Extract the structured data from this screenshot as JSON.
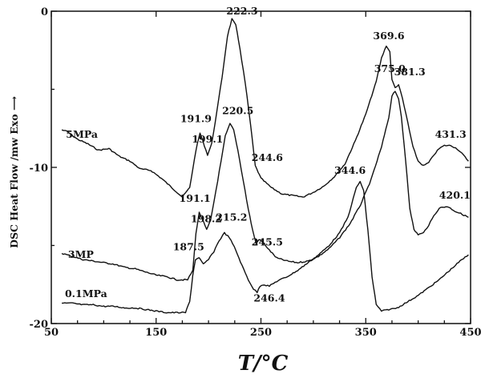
{
  "chart_data": {
    "type": "line",
    "xlabel": "T/°C",
    "ylabel": "DSC Heat Flow /mw   Exo ⟶",
    "xlim": [
      50,
      450
    ],
    "ylim": [
      -20,
      0
    ],
    "xticks": [
      50,
      150,
      250,
      350,
      450
    ],
    "xtick_labels": [
      "50",
      "150",
      "250",
      "350",
      "450"
    ],
    "yticks": [
      0,
      -10,
      -20
    ],
    "ytick_labels": [
      "0",
      "-10",
      "-20"
    ],
    "grid": false,
    "series": [
      {
        "name": "5MPa",
        "points": [
          [
            60,
            -7.6
          ],
          [
            65,
            -7.7
          ],
          [
            75,
            -8.2
          ],
          [
            85,
            -8.5
          ],
          [
            95,
            -8.9
          ],
          [
            105,
            -8.8
          ],
          [
            115,
            -9.3
          ],
          [
            125,
            -9.6
          ],
          [
            135,
            -10.1
          ],
          [
            145,
            -10.2
          ],
          [
            155,
            -10.7
          ],
          [
            165,
            -11.3
          ],
          [
            175,
            -11.9
          ],
          [
            182,
            -11.3
          ],
          [
            188,
            -8.9
          ],
          [
            191.9,
            -7.8
          ],
          [
            196,
            -8.6
          ],
          [
            199.1,
            -9.2
          ],
          [
            203,
            -8.5
          ],
          [
            208,
            -6.4
          ],
          [
            213,
            -4.2
          ],
          [
            218,
            -1.6
          ],
          [
            222.3,
            -0.5
          ],
          [
            226,
            -0.9
          ],
          [
            230,
            -2.4
          ],
          [
            235,
            -4.6
          ],
          [
            240,
            -7.2
          ],
          [
            244.6,
            -9.9
          ],
          [
            250,
            -10.7
          ],
          [
            260,
            -11.3
          ],
          [
            270,
            -11.7
          ],
          [
            280,
            -11.8
          ],
          [
            290,
            -11.9
          ],
          [
            300,
            -11.6
          ],
          [
            310,
            -11.2
          ],
          [
            320,
            -10.6
          ],
          [
            330,
            -9.8
          ],
          [
            340,
            -8.3
          ],
          [
            350,
            -6.6
          ],
          [
            360,
            -4.5
          ],
          [
            365,
            -3.0
          ],
          [
            369.6,
            -2.2
          ],
          [
            373,
            -2.6
          ],
          [
            375.0,
            -4.4
          ],
          [
            378,
            -4.9
          ],
          [
            381.3,
            -4.7
          ],
          [
            385,
            -5.6
          ],
          [
            390,
            -7.1
          ],
          [
            395,
            -8.7
          ],
          [
            400,
            -9.6
          ],
          [
            405,
            -9.9
          ],
          [
            410,
            -9.7
          ],
          [
            415,
            -9.2
          ],
          [
            420,
            -8.8
          ],
          [
            425,
            -8.6
          ],
          [
            431.3,
            -8.6
          ],
          [
            437,
            -8.8
          ],
          [
            443,
            -9.2
          ],
          [
            448,
            -9.6
          ]
        ]
      },
      {
        "name": "3MP",
        "points": [
          [
            60,
            -15.5
          ],
          [
            70,
            -15.7
          ],
          [
            80,
            -15.9
          ],
          [
            90,
            -16.0
          ],
          [
            100,
            -16.1
          ],
          [
            110,
            -16.2
          ],
          [
            120,
            -16.4
          ],
          [
            130,
            -16.5
          ],
          [
            140,
            -16.7
          ],
          [
            150,
            -16.9
          ],
          [
            160,
            -17.0
          ],
          [
            170,
            -17.2
          ],
          [
            180,
            -17.2
          ],
          [
            185,
            -16.6
          ],
          [
            188,
            -14.2
          ],
          [
            191.1,
            -12.9
          ],
          [
            194,
            -13.3
          ],
          [
            198.2,
            -14.0
          ],
          [
            202,
            -13.4
          ],
          [
            207,
            -11.5
          ],
          [
            212,
            -9.6
          ],
          [
            216,
            -8.0
          ],
          [
            220.5,
            -7.2
          ],
          [
            224,
            -7.6
          ],
          [
            228,
            -8.9
          ],
          [
            233,
            -10.8
          ],
          [
            238,
            -12.7
          ],
          [
            242,
            -14.0
          ],
          [
            245.5,
            -14.9
          ],
          [
            248,
            -14.6
          ],
          [
            252,
            -14.8
          ],
          [
            258,
            -15.3
          ],
          [
            265,
            -15.8
          ],
          [
            275,
            -16.0
          ],
          [
            285,
            -16.1
          ],
          [
            295,
            -16.0
          ],
          [
            305,
            -15.7
          ],
          [
            315,
            -15.2
          ],
          [
            325,
            -14.5
          ],
          [
            335,
            -13.6
          ],
          [
            345,
            -12.4
          ],
          [
            355,
            -10.8
          ],
          [
            365,
            -8.7
          ],
          [
            372,
            -6.8
          ],
          [
            375.0,
            -5.4
          ],
          [
            378,
            -5.1
          ],
          [
            381.3,
            -5.6
          ],
          [
            384,
            -6.8
          ],
          [
            388,
            -9.5
          ],
          [
            392,
            -12.6
          ],
          [
            396,
            -14.0
          ],
          [
            400,
            -14.3
          ],
          [
            405,
            -14.2
          ],
          [
            410,
            -13.7
          ],
          [
            415,
            -13.1
          ],
          [
            420.1,
            -12.6
          ],
          [
            428,
            -12.5
          ],
          [
            435,
            -12.8
          ],
          [
            442,
            -13.0
          ],
          [
            448,
            -13.2
          ]
        ]
      },
      {
        "name": "0.1MPa",
        "points": [
          [
            60,
            -18.7
          ],
          [
            70,
            -18.7
          ],
          [
            80,
            -18.8
          ],
          [
            90,
            -18.8
          ],
          [
            100,
            -18.9
          ],
          [
            110,
            -18.9
          ],
          [
            120,
            -19.0
          ],
          [
            130,
            -19.0
          ],
          [
            140,
            -19.1
          ],
          [
            150,
            -19.2
          ],
          [
            160,
            -19.3
          ],
          [
            170,
            -19.3
          ],
          [
            178,
            -19.3
          ],
          [
            182,
            -18.6
          ],
          [
            185,
            -16.9
          ],
          [
            187.5,
            -15.9
          ],
          [
            191,
            -15.8
          ],
          [
            195,
            -16.2
          ],
          [
            200,
            -15.9
          ],
          [
            205,
            -15.4
          ],
          [
            210,
            -14.7
          ],
          [
            215.2,
            -14.2
          ],
          [
            220,
            -14.5
          ],
          [
            226,
            -15.3
          ],
          [
            232,
            -16.3
          ],
          [
            238,
            -17.2
          ],
          [
            243,
            -17.8
          ],
          [
            246.4,
            -18.0
          ],
          [
            249,
            -17.6
          ],
          [
            252,
            -17.5
          ],
          [
            258,
            -17.6
          ],
          [
            265,
            -17.3
          ],
          [
            275,
            -17.0
          ],
          [
            285,
            -16.6
          ],
          [
            295,
            -16.1
          ],
          [
            305,
            -15.6
          ],
          [
            315,
            -15.0
          ],
          [
            325,
            -14.2
          ],
          [
            333,
            -13.2
          ],
          [
            338,
            -12.0
          ],
          [
            341,
            -11.3
          ],
          [
            344.6,
            -10.9
          ],
          [
            348,
            -11.5
          ],
          [
            352,
            -14.0
          ],
          [
            356,
            -17.0
          ],
          [
            360,
            -18.8
          ],
          [
            365,
            -19.2
          ],
          [
            372,
            -19.1
          ],
          [
            380,
            -19.0
          ],
          [
            390,
            -18.6
          ],
          [
            400,
            -18.2
          ],
          [
            410,
            -17.7
          ],
          [
            420,
            -17.2
          ],
          [
            430,
            -16.6
          ],
          [
            440,
            -16.0
          ],
          [
            448,
            -15.6
          ]
        ]
      }
    ],
    "series_labels": [
      {
        "text": "5MPa",
        "x": 64,
        "y": -8.1
      },
      {
        "text": "3MP",
        "x": 66,
        "y": -15.8
      },
      {
        "text": "0.1MPa",
        "x": 63,
        "y": -18.3
      }
    ],
    "annotations": [
      {
        "text": "222.3",
        "x": 232,
        "y": -0.2
      },
      {
        "text": "191.9",
        "x": 188,
        "y": -7.1
      },
      {
        "text": "199.1",
        "x": 199,
        "y": -8.4
      },
      {
        "text": "244.6",
        "x": 256,
        "y": -9.6
      },
      {
        "text": "220.5",
        "x": 228,
        "y": -6.6
      },
      {
        "text": "191.1",
        "x": 187,
        "y": -12.2
      },
      {
        "text": "198.2",
        "x": 198,
        "y": -13.5
      },
      {
        "text": "215.2",
        "x": 222,
        "y": -13.4
      },
      {
        "text": "187.5",
        "x": 181,
        "y": -15.3
      },
      {
        "text": "245.5",
        "x": 256,
        "y": -15.0
      },
      {
        "text": "246.4",
        "x": 258,
        "y": -18.6
      },
      {
        "text": "344.6",
        "x": 335,
        "y": -10.4
      },
      {
        "text": "369.6",
        "x": 372,
        "y": -1.8
      },
      {
        "text": "375.0",
        "x": 373,
        "y": -3.9
      },
      {
        "text": "381.3",
        "x": 392,
        "y": -4.1
      },
      {
        "text": "431.3",
        "x": 431,
        "y": -8.1
      },
      {
        "text": "420.1",
        "x": 435,
        "y": -12.0
      }
    ]
  }
}
